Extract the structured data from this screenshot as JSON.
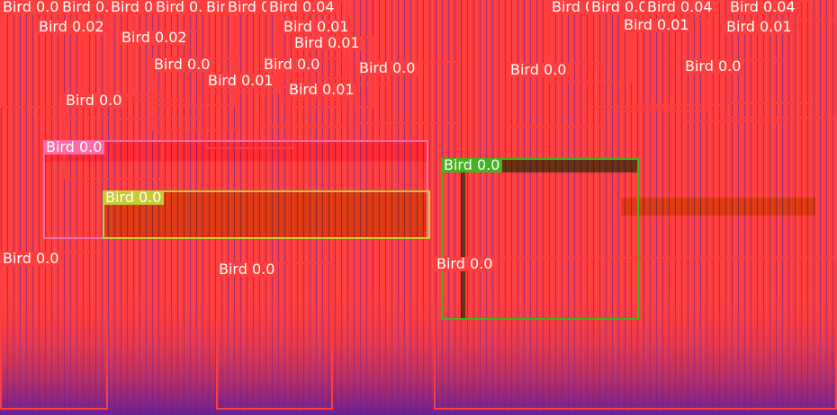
{
  "scene": {
    "detections": [
      {
        "label": "Bird 0.08",
        "color": "#ff3d3d"
      },
      {
        "label": "Bird 0.05",
        "color": "#ff3d3d"
      },
      {
        "label": "Bird 0.04",
        "color": "#ff3d3d"
      },
      {
        "label": "Bird 0.04",
        "color": "#ff3d3d"
      },
      {
        "label": "Bird 0.04",
        "color": "#ff3d3d"
      },
      {
        "label": "Bird 0.04",
        "color": "#ff3d3d"
      },
      {
        "label": "Bird 0.04",
        "color": "#ff3d3d"
      },
      {
        "label": "Bird 0.05",
        "color": "#ff3d3d"
      },
      {
        "label": "Bird 0.04",
        "color": "#ff3d3d"
      },
      {
        "label": "Bird 0.04",
        "color": "#ff3d3d"
      },
      {
        "label": "Bird 0.04",
        "color": "#ff3d3d"
      },
      {
        "label": "Bird 0.02",
        "color": "#ff3d3d"
      },
      {
        "label": "Bird 0.02",
        "color": "#ff3d3d"
      },
      {
        "label": "Bird 0.01",
        "color": "#ff3d3d"
      },
      {
        "label": "Bird 0.01",
        "color": "#ff3d3d"
      },
      {
        "label": "Bird 0.01",
        "color": "#ff3d3d"
      },
      {
        "label": "Bird 0.01",
        "color": "#ff3d3d"
      },
      {
        "label": "Bird 0.0",
        "color": "#ff3d3d"
      },
      {
        "label": "Bird 0.0",
        "color": "#ff3d3d"
      },
      {
        "label": "Bird 0.0",
        "color": "#ff3d3d"
      },
      {
        "label": "Bird 0.01",
        "color": "#ff3d3d"
      },
      {
        "label": "Bird 0.0",
        "color": "#ff3d3d"
      },
      {
        "label": "Bird 0.0",
        "color": "#ff3d3d"
      },
      {
        "label": "Bird 0.01",
        "color": "#ff3d3d"
      },
      {
        "label": "Bird 0.0",
        "color": "#ff3d3d"
      },
      {
        "label": "Bird 0.0",
        "color": "#ff6aa5"
      },
      {
        "label": "Bird 0.0",
        "color": "#45b21f"
      },
      {
        "label": "Bird 0.0",
        "color": "#c7cc32"
      },
      {
        "label": "Bird 0.0",
        "color": "#ff3d3d"
      },
      {
        "label": "Bird 0.0",
        "color": "#ff3d3d"
      },
      {
        "label": "Bird 0.0",
        "color": "#ff3d3d"
      }
    ]
  }
}
